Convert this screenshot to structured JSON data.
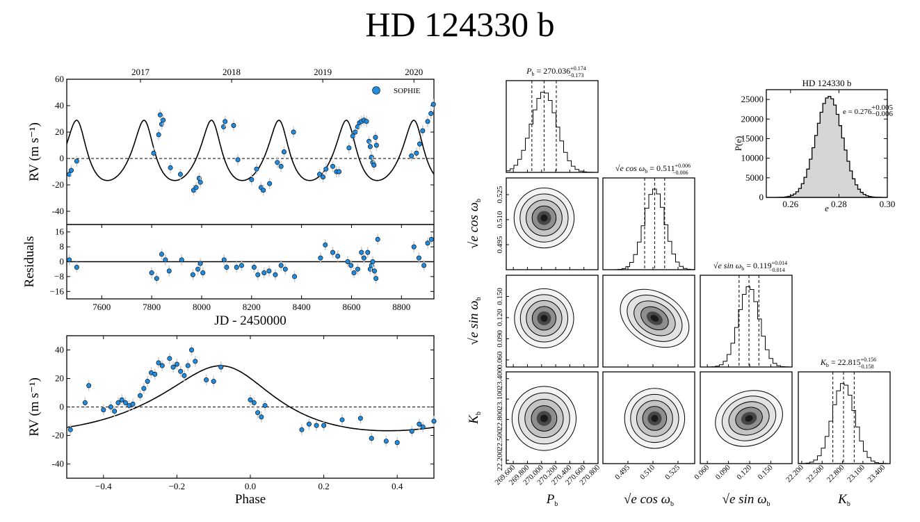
{
  "title": "HD 124330 b",
  "chart_data": [
    {
      "id": "rv-time",
      "type": "scatter",
      "ylabel": "RV (m s⁻¹)",
      "xlim": [
        7460,
        8930
      ],
      "ylim": [
        -50,
        60
      ],
      "yticks": [
        -40,
        -20,
        0,
        20,
        40,
        60
      ],
      "top_axis": {
        "ticks": [
          7755,
          8120,
          8485,
          8850
        ],
        "labels": [
          "2017",
          "2018",
          "2019",
          "2020"
        ]
      },
      "legend": {
        "label": "SOPHIE",
        "position": "top-right"
      },
      "model": {
        "period_days": 270.036,
        "K": 22.815,
        "e": 0.276,
        "omega_deg": 13.8,
        "tperi": 7505
      },
      "series": [
        {
          "name": "SOPHIE",
          "color": "#1f8ce0",
          "x": [
            7470,
            7478,
            7500,
            7808,
            7828,
            7834,
            7840,
            7846,
            7875,
            7915,
            7968,
            7978,
            7990,
            7995,
            8088,
            8094,
            8128,
            8145,
            8200,
            8220,
            8238,
            8247,
            8272,
            8303,
            8318,
            8330,
            8368,
            8472,
            8486,
            8498,
            8525,
            8540,
            8550,
            8590,
            8605,
            8615,
            8625,
            8632,
            8640,
            8650,
            8660,
            8670,
            8675,
            8680,
            8685,
            8690,
            8696,
            8700,
            8840,
            8860,
            8873,
            8885,
            8905,
            8918,
            8928
          ],
          "y": [
            -12,
            -9,
            -2,
            4,
            18,
            33,
            26,
            29,
            -7,
            -12,
            -24,
            -22,
            -15,
            -18,
            24,
            28,
            25,
            -1,
            -16,
            -8,
            -22,
            -24,
            -19,
            -3,
            -6,
            5,
            20,
            -12,
            -14,
            -8,
            -6,
            -10,
            -10,
            8,
            17,
            20,
            24,
            27,
            28,
            29,
            28,
            13,
            9,
            1,
            -3,
            -5,
            16,
            10,
            2,
            4,
            11,
            21,
            28,
            34,
            41
          ]
        }
      ]
    },
    {
      "id": "residuals",
      "type": "scatter",
      "ylabel": "Residuals",
      "xlabel": "JD - 2450000",
      "xlim": [
        7460,
        8930
      ],
      "ylim": [
        -20,
        20
      ],
      "yticks": [
        -16,
        -8,
        0,
        8,
        16
      ],
      "xticks": [
        7600,
        7800,
        8000,
        8200,
        8400,
        8600,
        8800
      ],
      "series": [
        {
          "name": "SOPHIE",
          "color": "#1f8ce0",
          "x": [
            7470,
            7500,
            7800,
            7820,
            7840,
            7855,
            7870,
            7920,
            7965,
            7985,
            7995,
            8005,
            8090,
            8100,
            8140,
            8160,
            8210,
            8225,
            8250,
            8270,
            8295,
            8318,
            8335,
            8372,
            8476,
            8495,
            8525,
            8545,
            8585,
            8598,
            8610,
            8625,
            8640,
            8650,
            8665,
            8675,
            8680,
            8685,
            8692,
            8698,
            8705,
            8850,
            8870,
            8890,
            8905,
            8920
          ],
          "y": [
            1,
            -3,
            -6,
            -9,
            4,
            1,
            -5,
            1,
            -7,
            -4,
            -1,
            -6,
            1,
            -3,
            -3,
            -2,
            -3,
            -7,
            -6,
            -5,
            -7,
            -2,
            -4,
            -8,
            2,
            9,
            5,
            3,
            0,
            -2,
            -6,
            -4,
            5,
            2,
            5,
            -4,
            -2,
            0,
            -5,
            -9,
            12,
            8,
            2,
            -2,
            10,
            12
          ]
        }
      ]
    },
    {
      "id": "rv-phase",
      "type": "scatter",
      "ylabel": "RV (m s⁻¹)",
      "xlabel": "Phase",
      "xlim": [
        -0.5,
        0.5
      ],
      "ylim": [
        -50,
        50
      ],
      "yticks": [
        -40,
        -20,
        0,
        20,
        40
      ],
      "xticks": [
        -0.4,
        -0.2,
        0.0,
        0.2,
        0.4
      ],
      "xtick_labels": [
        "−0.4",
        "−0.2",
        "0.0",
        "0.2",
        "0.4"
      ],
      "series": [
        {
          "name": "SOPHIE",
          "color": "#1f8ce0",
          "x": [
            -0.49,
            -0.45,
            -0.44,
            -0.4,
            -0.38,
            -0.37,
            -0.36,
            -0.35,
            -0.34,
            -0.33,
            -0.32,
            -0.3,
            -0.29,
            -0.28,
            -0.27,
            -0.26,
            -0.25,
            -0.24,
            -0.22,
            -0.21,
            -0.2,
            -0.19,
            -0.18,
            -0.17,
            -0.16,
            -0.15,
            -0.12,
            -0.1,
            -0.08,
            0.0,
            0.01,
            0.02,
            0.03,
            0.04,
            0.14,
            0.16,
            0.18,
            0.2,
            0.25,
            0.3,
            0.33,
            0.37,
            0.4,
            0.44,
            0.46,
            0.47,
            0.5
          ],
          "y": [
            -16,
            3,
            15,
            -2,
            0,
            -3,
            3,
            5,
            3,
            1,
            2,
            8,
            13,
            18,
            24,
            23,
            31,
            29,
            34,
            28,
            30,
            25,
            22,
            29,
            40,
            32,
            19,
            18,
            28,
            5,
            3,
            -4,
            -7,
            1,
            -16,
            -12,
            -13,
            -13,
            -9,
            -8,
            -22,
            -24,
            -25,
            -17,
            -12,
            -14,
            -10
          ]
        }
      ]
    },
    {
      "id": "ecc-posterior",
      "type": "histogram",
      "title": "HD 124330 b",
      "ylabel": "P(e)",
      "xlabel": "e",
      "xlim": [
        0.25,
        0.3
      ],
      "ylim": [
        0,
        27500
      ],
      "xticks": [
        0.26,
        0.28,
        0.3
      ],
      "yticks": [
        0,
        5000,
        10000,
        15000,
        20000,
        25000
      ],
      "annotation": {
        "text": "e = 0.276",
        "sup": "+0.005",
        "sub": "−0.006"
      },
      "distribution": {
        "mean": 0.276,
        "sigma": 0.0055,
        "peak": 25800
      }
    },
    {
      "id": "corner",
      "type": "corner",
      "parameters": [
        {
          "axis_label": "P",
          "sub": "b",
          "title_lhs": "P",
          "title_value": " = 270.036",
          "plus": "+0.174",
          "minus": "−0.173",
          "mu": 270.036,
          "sigma": 0.173,
          "range": [
            269.5,
            270.8
          ],
          "ticks": [
            269.6,
            269.8,
            270.0,
            270.2,
            270.4,
            270.6,
            270.8
          ],
          "tick_labels": [
            "269.600",
            "269.800",
            "270.000",
            "270.200",
            "270.400",
            "270.600",
            "270.800"
          ]
        },
        {
          "axis_label": "√e cos ω",
          "sub": "b",
          "title_lhs": "√e cos ω",
          "title_value": " = 0.511",
          "plus": "+0.006",
          "minus": "−0.006",
          "mu": 0.511,
          "sigma": 0.006,
          "range": [
            0.48,
            0.535
          ],
          "ticks": [
            0.495,
            0.51,
            0.525
          ],
          "tick_labels": [
            "0.495",
            "0.510",
            "0.525"
          ]
        },
        {
          "axis_label": "√e sin ω",
          "sub": "b",
          "title_lhs": "√e sin ω",
          "title_value": " = 0.119",
          "plus": "+0.014",
          "minus": "−0.014",
          "mu": 0.119,
          "sigma": 0.014,
          "range": [
            0.05,
            0.18
          ],
          "ticks": [
            0.06,
            0.09,
            0.12,
            0.15
          ],
          "tick_labels": [
            "0.060",
            "0.090",
            "0.120",
            "0.150"
          ]
        },
        {
          "axis_label": "K",
          "sub": "b",
          "title_lhs": "K",
          "title_value": " = 22.815",
          "plus": "+0.156",
          "minus": "−0.158",
          "mu": 22.815,
          "sigma": 0.157,
          "range": [
            22.15,
            23.5
          ],
          "ticks": [
            22.2,
            22.5,
            22.8,
            23.1,
            23.4
          ],
          "tick_labels": [
            "22.200",
            "22.500",
            "22.800",
            "23.100",
            "23.400"
          ]
        }
      ],
      "correlations": [
        [
          1,
          0,
          0,
          0
        ],
        [
          0,
          1,
          -0.55,
          0
        ],
        [
          0,
          -0.55,
          1,
          0.35
        ],
        [
          0,
          0,
          0.35,
          1
        ]
      ]
    }
  ]
}
